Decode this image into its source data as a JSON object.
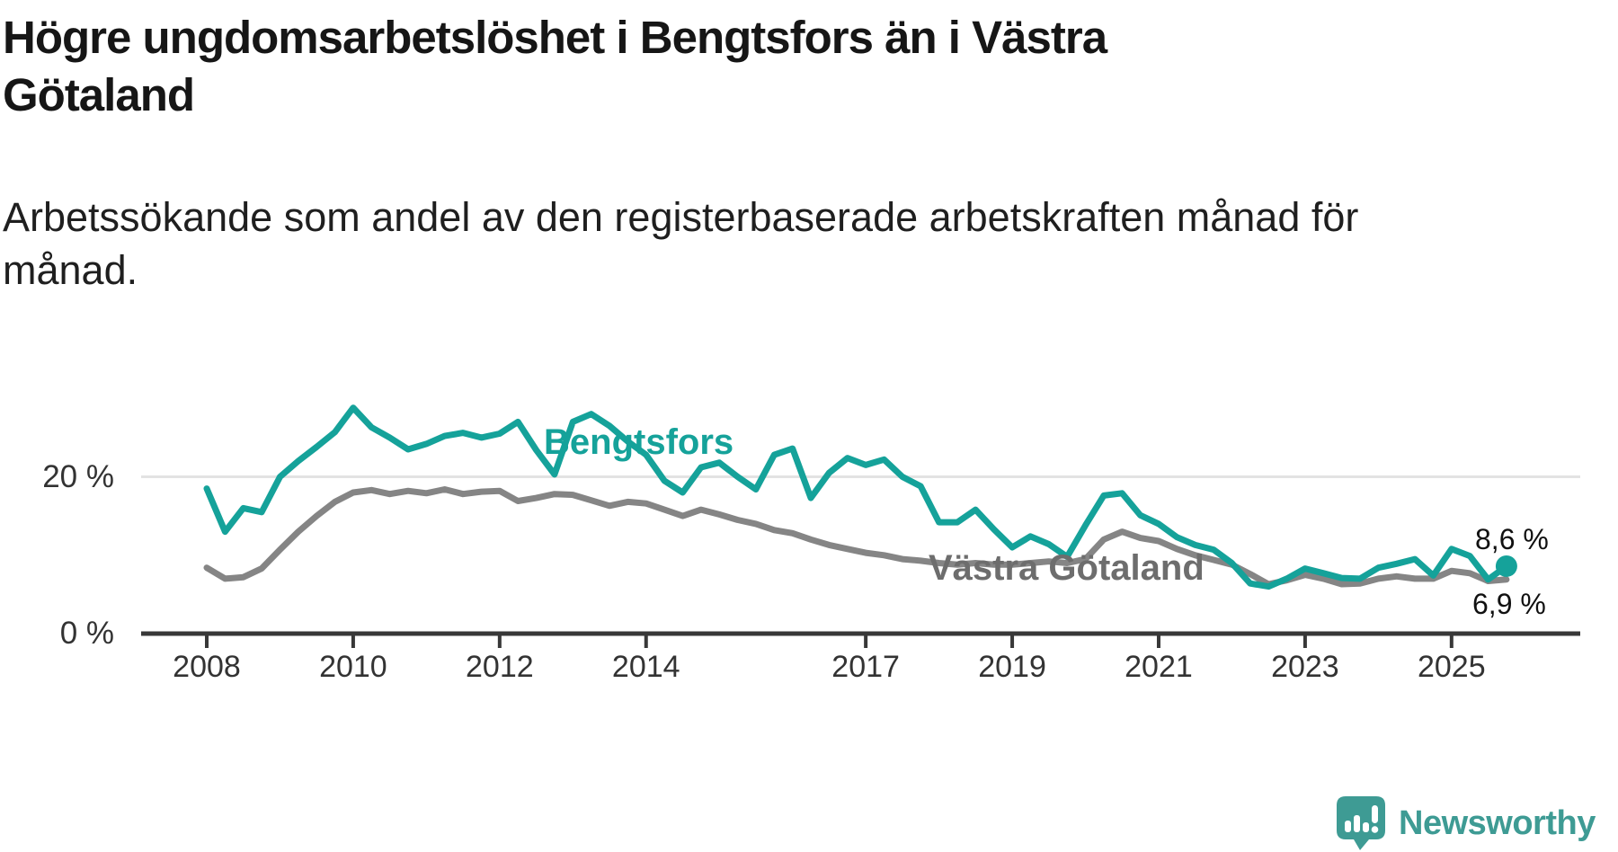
{
  "branding": {
    "logo_text": "Newsworthy",
    "logo_color": "#3E9B94"
  },
  "colors": {
    "bengtsfors_line": "#15A29A",
    "vastra_gotaland_line": "#858585",
    "vastra_gotaland_label": "#6D6D6D",
    "axis": "#383838",
    "tick_text": "#333333",
    "gridline": "#E3E3E3",
    "heading_text": "#161616"
  },
  "chart_data": {
    "type": "line",
    "title": "Högre ungdomsarbetslöshet i Bengtsfors än i Västra Götaland",
    "title_lines": [
      "Högre ungdomsarbetslöshet i Bengtsfors än i Västra",
      "Götaland"
    ],
    "subtitle": "Arbetssökande som andel av den registerbaserade arbetskraften månad för månad.",
    "subtitle_lines": [
      "Arbetssökande som andel av den registerbaserade arbetskraften månad för",
      "månad."
    ],
    "x_unit": "year (quarterly samples of monthly data)",
    "xlim": [
      2008,
      2026
    ],
    "ylim": [
      0,
      30
    ],
    "grid": "single horizontal gridline at 20 %",
    "legend_position": "inline labels next to lines",
    "x_tick_years": [
      2008,
      2010,
      2012,
      2014,
      2017,
      2019,
      2021,
      2023,
      2025
    ],
    "y_ticks": [
      {
        "value": 0,
        "label": "0 %"
      },
      {
        "value": 20,
        "label": "20 %"
      }
    ],
    "x": [
      2008,
      2008.25,
      2008.5,
      2008.75,
      2009,
      2009.25,
      2009.5,
      2009.75,
      2010,
      2010.25,
      2010.5,
      2010.75,
      2011,
      2011.25,
      2011.5,
      2011.75,
      2012,
      2012.25,
      2012.5,
      2012.75,
      2013,
      2013.25,
      2013.5,
      2013.75,
      2014,
      2014.25,
      2014.5,
      2014.75,
      2015,
      2015.25,
      2015.5,
      2015.75,
      2016,
      2016.25,
      2016.5,
      2016.75,
      2017,
      2017.25,
      2017.5,
      2017.75,
      2018,
      2018.25,
      2018.5,
      2018.75,
      2019,
      2019.25,
      2019.5,
      2019.75,
      2020,
      2020.25,
      2020.5,
      2020.75,
      2021,
      2021.25,
      2021.5,
      2021.75,
      2022,
      2022.25,
      2022.5,
      2022.75,
      2023,
      2023.25,
      2023.5,
      2023.75,
      2024,
      2024.25,
      2024.5,
      2024.75,
      2025,
      2025.25,
      2025.5,
      2025.75
    ],
    "series": [
      {
        "name": "Bengtsfors",
        "color": "#15A29A",
        "end_label": "8,6 %",
        "end_value": 8.6,
        "has_end_dot": true,
        "values": [
          18.5,
          13.0,
          16.0,
          15.5,
          20.0,
          22.0,
          23.8,
          25.7,
          28.8,
          26.3,
          25.0,
          23.5,
          24.2,
          25.2,
          25.6,
          25.0,
          25.5,
          27.0,
          23.4,
          20.3,
          27.0,
          28.0,
          26.5,
          24.5,
          22.8,
          19.5,
          18.0,
          21.2,
          21.8,
          20.0,
          18.4,
          22.8,
          23.6,
          17.3,
          20.5,
          22.4,
          21.5,
          22.2,
          20.0,
          18.8,
          14.2,
          14.2,
          15.8,
          13.3,
          11.0,
          12.4,
          11.4,
          9.8,
          13.8,
          17.6,
          17.9,
          15.1,
          14.0,
          12.3,
          11.3,
          10.7,
          9.0,
          6.4,
          6.0,
          7.0,
          8.3,
          7.7,
          7.1,
          7.0,
          8.4,
          8.9,
          9.5,
          7.4,
          10.8,
          9.9,
          6.9,
          8.6
        ]
      },
      {
        "name": "Västra Götaland",
        "color": "#858585",
        "label_color": "#6D6D6D",
        "end_label": "6,9 %",
        "end_value": 6.9,
        "has_end_dot": false,
        "values": [
          8.4,
          7.0,
          7.2,
          8.3,
          10.7,
          13.0,
          15.0,
          16.8,
          18.0,
          18.3,
          17.8,
          18.2,
          17.9,
          18.4,
          17.8,
          18.1,
          18.2,
          16.9,
          17.3,
          17.8,
          17.7,
          17.0,
          16.3,
          16.8,
          16.6,
          15.8,
          15.0,
          15.8,
          15.2,
          14.5,
          14.0,
          13.2,
          12.8,
          12.0,
          11.3,
          10.8,
          10.3,
          10.0,
          9.5,
          9.3,
          9.0,
          8.8,
          9.0,
          8.8,
          8.8,
          9.0,
          9.2,
          9.0,
          9.5,
          12.0,
          13.0,
          12.2,
          11.8,
          10.8,
          10.0,
          9.4,
          8.8,
          7.6,
          6.3,
          6.8,
          7.5,
          7.0,
          6.3,
          6.4,
          7.0,
          7.3,
          7.0,
          7.0,
          8.0,
          7.7,
          6.7,
          6.9
        ]
      }
    ]
  }
}
